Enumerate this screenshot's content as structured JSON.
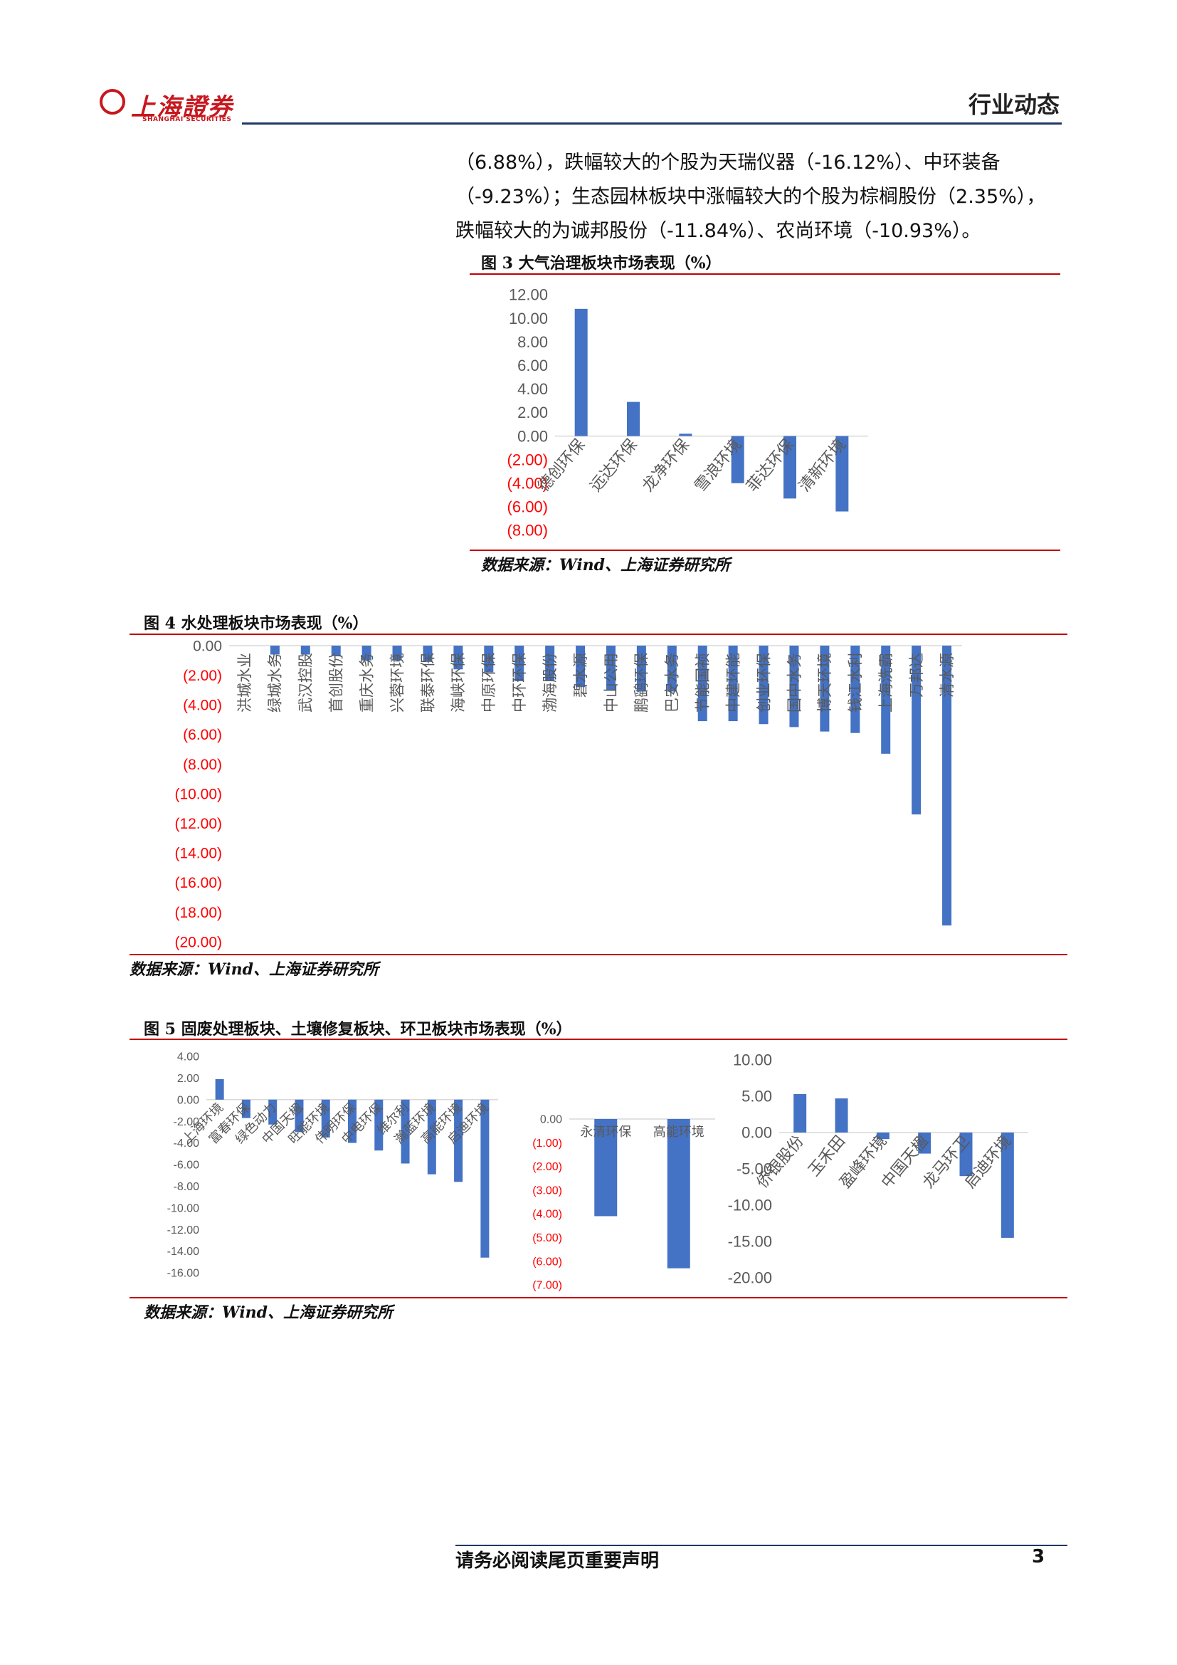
{
  "header": {
    "logo_text": "上海證券",
    "logo_sub": "SHANGHAI SECURITIES",
    "title": "行业动态"
  },
  "paragraph": {
    "lines": [
      "（6.88%），跌幅较大的个股为天瑞仪器（-16.12%）、中环装备",
      "（-9.23%）；生态园林板块中涨幅较大的个股为棕榈股份（2.35%），",
      "跌幅较大的为诚邦股份（-11.84%）、农尚环境（-10.93%）。"
    ]
  },
  "figures": {
    "fig3_caption": "图 3 大气治理板块市场表现（%）",
    "fig3_source": "数据来源：Wind、上海证券研究所",
    "fig4_caption": "图 4  水处理板块市场表现（%）",
    "fig4_source": "数据来源：Wind、上海证券研究所",
    "fig5_caption": "图 5 固废处理板块、土壤修复板块、环卫板块市场表现（%）",
    "fig5_source": "数据来源：Wind、上海证券研究所"
  },
  "colors": {
    "bar": "#4472c4",
    "negative_tick": "#ff0000",
    "rule_red": "#c00000",
    "rule_navy": "#1f3864"
  },
  "chart_data": [
    {
      "id": "fig3",
      "type": "bar",
      "categories": [
        "德创环保",
        "远达环保",
        "龙净环保",
        "雪浪环境",
        "菲达环保",
        "清新环境"
      ],
      "values": [
        10.8,
        2.9,
        0.2,
        -4.0,
        -5.3,
        -6.4
      ],
      "ylim": [
        -8,
        12
      ],
      "yticks": [
        12,
        10,
        8,
        6,
        4,
        2,
        0,
        -2,
        -4,
        -6,
        -8
      ],
      "ytick_labels": [
        "12.00",
        "10.00",
        "8.00",
        "6.00",
        "4.00",
        "2.00",
        "0.00",
        "(2.00)",
        "(4.00)",
        "(6.00)",
        "(8.00)"
      ],
      "negative_ticks_red": true
    },
    {
      "id": "fig4",
      "type": "bar",
      "categories": [
        "洪城水业",
        "绿城水务",
        "武汉控股",
        "首创股份",
        "重庆水务",
        "兴蓉环境",
        "联泰环保",
        "海峡环保",
        "中原环保",
        "中环环保",
        "渤海股份",
        "碧水源",
        "中山公用",
        "鹏鹞环保",
        "巴安水务",
        "节能国祯",
        "中建环能",
        "创业环保",
        "国中水务",
        "博天环境",
        "钱江水利",
        "上海洗霸",
        "万邦达",
        "清水源"
      ],
      "values": [
        0.0,
        -0.6,
        -0.6,
        -0.7,
        -1.0,
        -1.0,
        -1.1,
        -1.6,
        -1.8,
        -2.4,
        -2.4,
        -2.8,
        -3.0,
        -3.1,
        -3.1,
        -5.1,
        -5.1,
        -5.3,
        -5.5,
        -5.8,
        -5.9,
        -7.3,
        -11.4,
        -18.9
      ],
      "ylim": [
        -20,
        0
      ],
      "yticks": [
        0,
        -2,
        -4,
        -6,
        -8,
        -10,
        -12,
        -14,
        -16,
        -18,
        -20
      ],
      "ytick_labels": [
        "0.00",
        "(2.00)",
        "(4.00)",
        "(6.00)",
        "(8.00)",
        "(10.00)",
        "(12.00)",
        "(14.00)",
        "(16.00)",
        "(18.00)",
        "(20.00)"
      ],
      "negative_ticks_red": true
    },
    {
      "id": "fig5a",
      "type": "bar",
      "categories": [
        "上海环境",
        "富春环保",
        "绿色动力",
        "中国天楹",
        "旺能环境",
        "伟明环保",
        "中电环保",
        "维尔利",
        "瀚蓝环境",
        "高能环境",
        "启迪环境"
      ],
      "values": [
        1.9,
        -1.7,
        -2.3,
        -3.0,
        -3.5,
        -4.0,
        -4.7,
        -5.9,
        -6.9,
        -7.6,
        -14.6
      ],
      "ylim": [
        -16,
        4
      ],
      "yticks": [
        4,
        2,
        0,
        -2,
        -4,
        -6,
        -8,
        -10,
        -12,
        -14,
        -16
      ],
      "ytick_labels": [
        "4.00",
        "2.00",
        "0.00",
        "-2.00",
        "-4.00",
        "-6.00",
        "-8.00",
        "-10.00",
        "-12.00",
        "-14.00",
        "-16.00"
      ],
      "negative_ticks_red": false
    },
    {
      "id": "fig5b",
      "type": "bar",
      "categories": [
        "永清环保",
        "高能环境"
      ],
      "values": [
        -4.1,
        -6.3
      ],
      "ylim": [
        -7,
        0
      ],
      "yticks": [
        0,
        -1,
        -2,
        -3,
        -4,
        -5,
        -6,
        -7
      ],
      "ytick_labels": [
        "0.00",
        "(1.00)",
        "(2.00)",
        "(3.00)",
        "(4.00)",
        "(5.00)",
        "(6.00)",
        "(7.00)"
      ],
      "negative_ticks_red": true
    },
    {
      "id": "fig5c",
      "type": "bar",
      "categories": [
        "侨银股份",
        "玉禾田",
        "盈峰环境",
        "中国天楹",
        "龙马环卫",
        "启迪环境"
      ],
      "values": [
        5.3,
        4.7,
        -0.9,
        -2.9,
        -6.0,
        -14.5
      ],
      "ylim": [
        -20,
        10
      ],
      "yticks": [
        10,
        5,
        0,
        -5,
        -10,
        -15,
        -20
      ],
      "ytick_labels": [
        "10.00",
        "5.00",
        "0.00",
        "-5.00",
        "-10.00",
        "-15.00",
        "-20.00"
      ],
      "negative_ticks_red": false
    }
  ],
  "footer": {
    "note": "请务必阅读尾页重要声明",
    "page_number": "3"
  }
}
